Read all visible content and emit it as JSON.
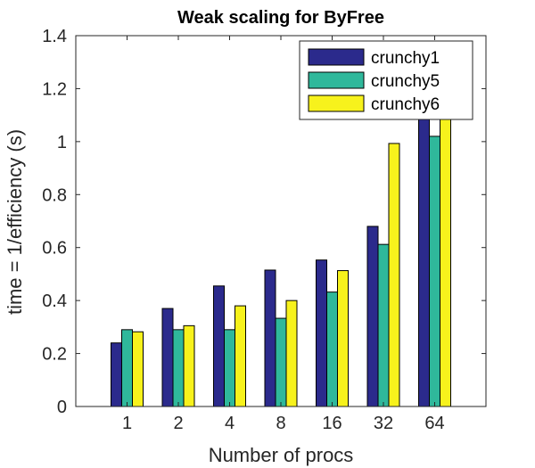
{
  "chart_data": {
    "type": "bar",
    "title": "Weak scaling for ByFree",
    "xlabel": "Number of procs",
    "ylabel": "time = 1/efficiency (s)",
    "categories": [
      "1",
      "2",
      "4",
      "8",
      "16",
      "32",
      "64"
    ],
    "ylim": [
      0,
      1.4
    ],
    "yticks": [
      "0",
      "0.2",
      "0.4",
      "0.6",
      "0.8",
      "1",
      "1.2",
      "1.4"
    ],
    "grid": false,
    "legend_position": "top-right",
    "series": [
      {
        "name": "crunchy1",
        "color": "#2b2a8c",
        "values": [
          0.24,
          0.37,
          0.455,
          0.515,
          0.553,
          0.68,
          1.09
        ]
      },
      {
        "name": "crunchy5",
        "color": "#2fb89b",
        "values": [
          0.29,
          0.29,
          0.29,
          0.333,
          0.432,
          0.612,
          1.02
        ]
      },
      {
        "name": "crunchy6",
        "color": "#f7f21c",
        "values": [
          0.282,
          0.305,
          0.38,
          0.4,
          0.513,
          0.993,
          1.09
        ]
      }
    ]
  }
}
